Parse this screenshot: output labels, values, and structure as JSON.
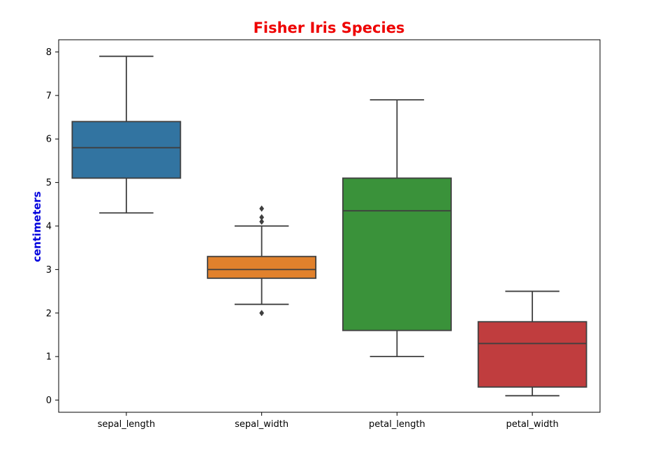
{
  "chart_data": {
    "type": "box",
    "title": "Fisher Iris Species",
    "title_color": "#ee0000",
    "xlabel": "",
    "ylabel": "centimeters",
    "ylabel_color": "#0000dd",
    "ylim": [
      -0.28,
      8.28
    ],
    "yticks": [
      0,
      1,
      2,
      3,
      4,
      5,
      6,
      7,
      8
    ],
    "grid": false,
    "line_color": "#3f3f3f",
    "categories": [
      "sepal_length",
      "sepal_width",
      "petal_length",
      "petal_width"
    ],
    "boxes": [
      {
        "name": "sepal_length",
        "whisker_low": 4.3,
        "q1": 5.1,
        "median": 5.8,
        "q3": 6.4,
        "whisker_high": 7.9,
        "outliers": [],
        "color": "#3274a1"
      },
      {
        "name": "sepal_width",
        "whisker_low": 2.2,
        "q1": 2.8,
        "median": 3.0,
        "q3": 3.3,
        "whisker_high": 4.0,
        "outliers": [
          2.0,
          4.1,
          4.2,
          4.4
        ],
        "color": "#e1812c"
      },
      {
        "name": "petal_length",
        "whisker_low": 1.0,
        "q1": 1.6,
        "median": 4.35,
        "q3": 5.1,
        "whisker_high": 6.9,
        "outliers": [],
        "color": "#3a923a"
      },
      {
        "name": "petal_width",
        "whisker_low": 0.1,
        "q1": 0.3,
        "median": 1.3,
        "q3": 1.8,
        "whisker_high": 2.5,
        "outliers": [],
        "color": "#c03d3e"
      }
    ]
  }
}
